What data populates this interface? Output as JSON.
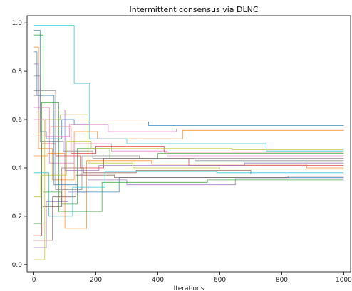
{
  "chart_data": {
    "type": "line",
    "title": "Intermittent consensus via DLNC",
    "xlabel": "Iterations",
    "ylabel": "",
    "xlim": [
      -22,
      1022
    ],
    "ylim": [
      -0.03,
      1.03
    ],
    "xticks": [
      0,
      200,
      400,
      600,
      800,
      1000
    ],
    "yticks": [
      0.0,
      0.2,
      0.4,
      0.6,
      0.8,
      1.0
    ],
    "xtick_labels": [
      "0",
      "200",
      "400",
      "600",
      "800",
      "1000"
    ],
    "ytick_labels": [
      "0.0",
      "0.2",
      "0.4",
      "0.6",
      "0.8",
      "1.0"
    ],
    "grid": false,
    "legend": "none",
    "colors": [
      "#1f77b4",
      "#ff7f0e",
      "#2ca02c",
      "#d62728",
      "#9467bd",
      "#8c564b",
      "#e377c2",
      "#7f7f7f",
      "#bcbd22",
      "#17becf"
    ],
    "series": [
      {
        "x": [
          0,
          20,
          20,
          40,
          40,
          90,
          90,
          130,
          130,
          175,
          175,
          370,
          370,
          1000
        ],
        "y": [
          0.97,
          0.97,
          0.55,
          0.55,
          0.52,
          0.52,
          0.6,
          0.6,
          0.58,
          0.58,
          0.59,
          0.59,
          0.575,
          0.575
        ]
      },
      {
        "x": [
          0,
          15,
          15,
          60,
          60,
          130,
          130,
          205,
          205,
          480,
          480,
          1000
        ],
        "y": [
          0.9,
          0.9,
          0.48,
          0.48,
          0.35,
          0.35,
          0.55,
          0.55,
          0.52,
          0.52,
          0.555,
          0.555
        ]
      },
      {
        "x": [
          0,
          30,
          30,
          90,
          90,
          140,
          140,
          245,
          245,
          400,
          400,
          1000
        ],
        "y": [
          0.95,
          0.95,
          0.3,
          0.3,
          0.25,
          0.25,
          0.48,
          0.48,
          0.44,
          0.44,
          0.46,
          0.46
        ]
      },
      {
        "x": [
          0,
          25,
          25,
          70,
          70,
          150,
          150,
          225,
          225,
          500,
          500,
          1000
        ],
        "y": [
          0.12,
          0.12,
          0.5,
          0.5,
          0.45,
          0.45,
          0.4,
          0.4,
          0.44,
          0.44,
          0.41,
          0.41
        ]
      },
      {
        "x": [
          0,
          40,
          40,
          110,
          110,
          175,
          175,
          300,
          300,
          650,
          650,
          1000
        ],
        "y": [
          0.07,
          0.07,
          0.26,
          0.26,
          0.3,
          0.3,
          0.35,
          0.35,
          0.33,
          0.33,
          0.355,
          0.355
        ]
      },
      {
        "x": [
          0,
          30,
          30,
          90,
          90,
          160,
          160,
          330,
          330,
          700,
          700,
          1000
        ],
        "y": [
          0.7,
          0.7,
          0.24,
          0.24,
          0.4,
          0.4,
          0.38,
          0.38,
          0.39,
          0.39,
          0.375,
          0.375
        ]
      },
      {
        "x": [
          0,
          50,
          50,
          130,
          130,
          250,
          250,
          430,
          430,
          1000
        ],
        "y": [
          0.65,
          0.65,
          0.42,
          0.42,
          0.5,
          0.5,
          0.47,
          0.47,
          0.45,
          0.45
        ]
      },
      {
        "x": [
          0,
          20,
          20,
          95,
          95,
          190,
          190,
          520,
          520,
          1000
        ],
        "y": [
          0.78,
          0.78,
          0.51,
          0.51,
          0.47,
          0.47,
          0.44,
          0.44,
          0.43,
          0.43
        ]
      },
      {
        "x": [
          0,
          35,
          35,
          85,
          85,
          175,
          175,
          320,
          320,
          600,
          600,
          1000
        ],
        "y": [
          0.02,
          0.02,
          0.6,
          0.6,
          0.62,
          0.62,
          0.42,
          0.42,
          0.4,
          0.4,
          0.395,
          0.395
        ]
      },
      {
        "x": [
          0,
          130,
          130,
          180,
          180,
          300,
          300,
          750,
          750,
          1000
        ],
        "y": [
          0.99,
          0.99,
          0.75,
          0.75,
          0.52,
          0.52,
          0.5,
          0.5,
          0.47,
          0.47
        ]
      },
      {
        "x": [
          0,
          10,
          10,
          65,
          65,
          140,
          140,
          275,
          275,
          1000
        ],
        "y": [
          0.88,
          0.88,
          0.7,
          0.7,
          0.33,
          0.33,
          0.3,
          0.3,
          0.36,
          0.36
        ]
      },
      {
        "x": [
          0,
          45,
          45,
          100,
          100,
          170,
          170,
          380,
          380,
          880,
          880,
          1000
        ],
        "y": [
          0.45,
          0.45,
          0.46,
          0.46,
          0.15,
          0.15,
          0.43,
          0.43,
          0.415,
          0.415,
          0.4,
          0.4
        ]
      },
      {
        "x": [
          0,
          25,
          25,
          80,
          80,
          220,
          220,
          560,
          560,
          1000
        ],
        "y": [
          0.17,
          0.17,
          0.67,
          0.67,
          0.22,
          0.22,
          0.34,
          0.34,
          0.35,
          0.35
        ]
      },
      {
        "x": [
          0,
          55,
          55,
          120,
          120,
          200,
          200,
          420,
          420,
          1000
        ],
        "y": [
          0.54,
          0.54,
          0.57,
          0.57,
          0.46,
          0.46,
          0.49,
          0.49,
          0.465,
          0.465
        ]
      },
      {
        "x": [
          0,
          15,
          15,
          100,
          100,
          210,
          210,
          680,
          680,
          1000
        ],
        "y": [
          0.83,
          0.83,
          0.64,
          0.64,
          0.39,
          0.39,
          0.41,
          0.41,
          0.42,
          0.42
        ]
      },
      {
        "x": [
          0,
          60,
          60,
          135,
          135,
          260,
          260,
          820,
          820,
          1000
        ],
        "y": [
          0.1,
          0.1,
          0.28,
          0.28,
          0.37,
          0.37,
          0.36,
          0.36,
          0.365,
          0.365
        ]
      },
      {
        "x": [
          0,
          38,
          38,
          115,
          115,
          240,
          240,
          460,
          460,
          1000
        ],
        "y": [
          0.6,
          0.6,
          0.53,
          0.53,
          0.58,
          0.58,
          0.55,
          0.55,
          0.56,
          0.56
        ]
      },
      {
        "x": [
          0,
          70,
          70,
          155,
          155,
          340,
          340,
          1000
        ],
        "y": [
          0.72,
          0.72,
          0.31,
          0.31,
          0.45,
          0.45,
          0.44,
          0.44
        ]
      },
      {
        "x": [
          0,
          22,
          22,
          105,
          105,
          185,
          185,
          640,
          640,
          1000
        ],
        "y": [
          0.28,
          0.28,
          0.37,
          0.37,
          0.51,
          0.51,
          0.48,
          0.48,
          0.475,
          0.475
        ]
      },
      {
        "x": [
          0,
          48,
          48,
          125,
          125,
          230,
          230,
          590,
          590,
          1000
        ],
        "y": [
          0.38,
          0.38,
          0.2,
          0.2,
          0.32,
          0.32,
          0.385,
          0.385,
          0.38,
          0.38
        ]
      }
    ]
  }
}
